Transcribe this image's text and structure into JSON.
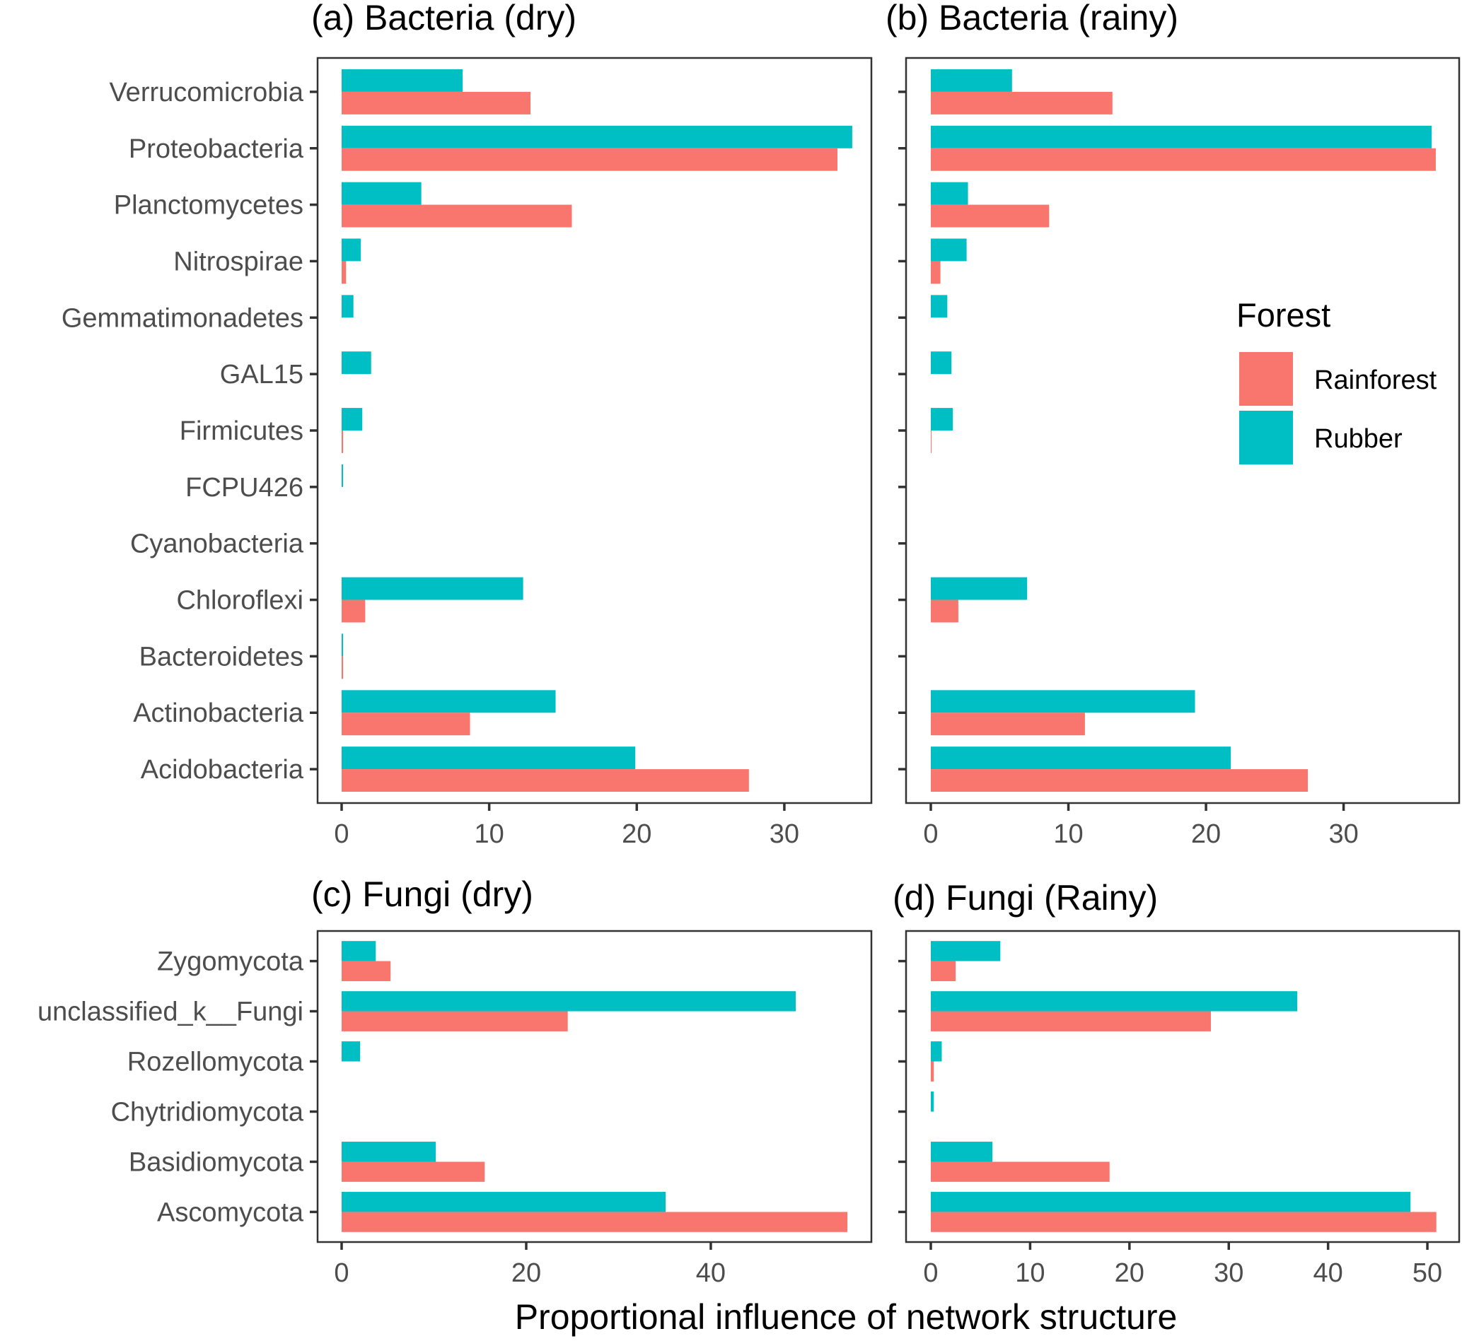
{
  "chart_data": {
    "type": "bar",
    "orientation": "horizontal",
    "xlabel": "Proportional influence of network structure",
    "legend": {
      "title": "Forest",
      "position": "right",
      "entries": [
        {
          "name": "Rainforest",
          "color": "#F8766D"
        },
        {
          "name": "Rubber",
          "color": "#00BFC4"
        }
      ]
    },
    "panels": [
      {
        "title": "(a) Bacteria (dry)",
        "categories": [
          "Verrucomicrobia",
          "Proteobacteria",
          "Planctomycetes",
          "Nitrospirae",
          "Gemmatimonadetes",
          "GAL15",
          "Firmicutes",
          "FCPU426",
          "Cyanobacteria",
          "Chloroflexi",
          "Bacteroidetes",
          "Actinobacteria",
          "Acidobacteria"
        ],
        "series": [
          {
            "name": "Rubber",
            "values": [
              8.2,
              34.6,
              5.4,
              1.3,
              0.8,
              2.0,
              1.4,
              0.1,
              0.0,
              12.3,
              0.1,
              14.5,
              19.9
            ]
          },
          {
            "name": "Rainforest",
            "values": [
              12.8,
              33.6,
              15.6,
              0.3,
              0.0,
              0.0,
              0.1,
              0.0,
              0.0,
              1.6,
              0.1,
              8.7,
              27.6
            ]
          }
        ],
        "xticks": [
          0,
          10,
          20,
          30
        ],
        "xlim": [
          0,
          35.9
        ]
      },
      {
        "title": "(b) Bacteria (rainy)",
        "categories": [
          "Verrucomicrobia",
          "Proteobacteria",
          "Planctomycetes",
          "Nitrospirae",
          "Gemmatimonadetes",
          "GAL15",
          "Firmicutes",
          "FCPU426",
          "Cyanobacteria",
          "Chloroflexi",
          "Bacteroidetes",
          "Actinobacteria",
          "Acidobacteria"
        ],
        "series": [
          {
            "name": "Rubber",
            "values": [
              5.9,
              36.4,
              2.7,
              2.6,
              1.2,
              1.5,
              1.6,
              0.0,
              0.0,
              7.0,
              0.0,
              19.2,
              21.8
            ]
          },
          {
            "name": "Rainforest",
            "values": [
              13.2,
              36.7,
              8.6,
              0.7,
              0.0,
              0.0,
              0.05,
              0.0,
              0.0,
              2.0,
              0.0,
              11.2,
              27.4
            ]
          }
        ],
        "xticks": [
          0,
          10,
          20,
          30
        ],
        "xlim": [
          0,
          38.4
        ]
      },
      {
        "title": "(c) Fungi (dry)",
        "categories": [
          "Zygomycota",
          "unclassified_k__Fungi",
          "Rozellomycota",
          "Chytridiomycota",
          "Basidiomycota",
          "Ascomycota"
        ],
        "series": [
          {
            "name": "Rubber",
            "values": [
              3.7,
              49.2,
              2.0,
              0.0,
              10.2,
              35.1
            ]
          },
          {
            "name": "Rainforest",
            "values": [
              5.3,
              24.5,
              0.0,
              0.0,
              15.5,
              54.8
            ]
          }
        ],
        "xticks": [
          0,
          20,
          40
        ],
        "xlim": [
          0,
          57.4
        ]
      },
      {
        "title": "(d) Fungi (Rainy)",
        "categories": [
          "Zygomycota",
          "unclassified_k__Fungi",
          "Rozellomycota",
          "Chytridiomycota",
          "Basidiomycota",
          "Ascomycota"
        ],
        "series": [
          {
            "name": "Rubber",
            "values": [
              7.0,
              36.9,
              1.1,
              0.3,
              6.2,
              48.3
            ]
          },
          {
            "name": "Rainforest",
            "values": [
              2.5,
              28.2,
              0.3,
              0.0,
              18.0,
              50.9
            ]
          }
        ],
        "xticks": [
          0,
          10,
          20,
          30,
          40,
          50
        ],
        "xlim": [
          0,
          53.2
        ]
      }
    ]
  }
}
